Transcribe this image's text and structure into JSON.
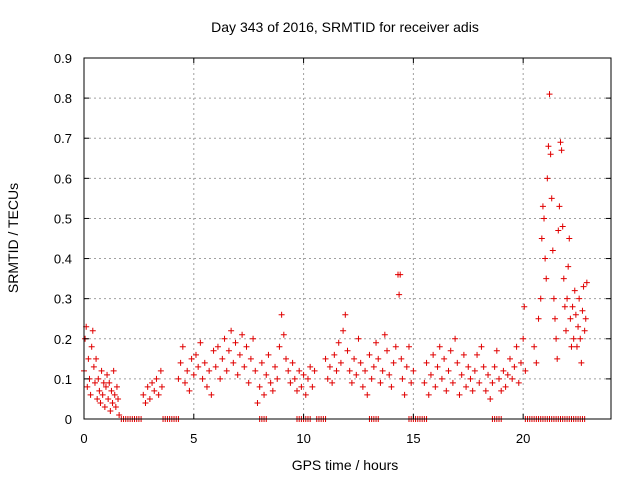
{
  "chart_data": {
    "type": "scatter",
    "title": "Day 343 of 2016, SRMTID for receiver adis",
    "xlabel": "GPS time / hours",
    "ylabel": "SRMTID / TECUs",
    "xlim": [
      0,
      24
    ],
    "ylim": [
      0,
      0.9
    ],
    "xticks": [
      0,
      5,
      10,
      15,
      20
    ],
    "xtick_labels": [
      "0",
      "5",
      "10",
      "15",
      "20"
    ],
    "yticks": [
      0,
      0.1,
      0.2,
      0.3,
      0.4,
      0.5,
      0.6,
      0.7,
      0.8,
      0.9
    ],
    "ytick_labels": [
      "0",
      "0.1",
      "0.2",
      "0.3",
      "0.4",
      "0.5",
      "0.6",
      "0.7",
      "0.8",
      "0.9"
    ],
    "grid": true,
    "marker": "+",
    "marker_color": "#e00000",
    "series": [
      {
        "name": "SRMTID",
        "points": [
          [
            0.0,
            0.12
          ],
          [
            0.05,
            0.2
          ],
          [
            0.1,
            0.23
          ],
          [
            0.15,
            0.08
          ],
          [
            0.2,
            0.15
          ],
          [
            0.25,
            0.1
          ],
          [
            0.3,
            0.06
          ],
          [
            0.35,
            0.18
          ],
          [
            0.4,
            0.22
          ],
          [
            0.45,
            0.13
          ],
          [
            0.5,
            0.09
          ],
          [
            0.55,
            0.15
          ],
          [
            0.6,
            0.05
          ],
          [
            0.65,
            0.1
          ],
          [
            0.7,
            0.07
          ],
          [
            0.75,
            0.04
          ],
          [
            0.8,
            0.12
          ],
          [
            0.85,
            0.06
          ],
          [
            0.9,
            0.09
          ],
          [
            0.95,
            0.03
          ],
          [
            1.0,
            0.08
          ],
          [
            1.05,
            0.11
          ],
          [
            1.1,
            0.05
          ],
          [
            1.15,
            0.09
          ],
          [
            1.2,
            0.02
          ],
          [
            1.25,
            0.07
          ],
          [
            1.3,
            0.04
          ],
          [
            1.35,
            0.12
          ],
          [
            1.4,
            0.06
          ],
          [
            1.45,
            0.03
          ],
          [
            1.5,
            0.08
          ],
          [
            1.55,
            0.05
          ],
          [
            1.6,
            0.01
          ],
          [
            2.7,
            0.06
          ],
          [
            2.8,
            0.04
          ],
          [
            2.9,
            0.08
          ],
          [
            3.0,
            0.05
          ],
          [
            3.1,
            0.09
          ],
          [
            3.2,
            0.07
          ],
          [
            3.3,
            0.1
          ],
          [
            3.4,
            0.06
          ],
          [
            3.5,
            0.12
          ],
          [
            3.55,
            0.08
          ],
          [
            4.3,
            0.1
          ],
          [
            4.4,
            0.14
          ],
          [
            4.5,
            0.18
          ],
          [
            4.6,
            0.09
          ],
          [
            4.7,
            0.12
          ],
          [
            4.8,
            0.07
          ],
          [
            4.9,
            0.15
          ],
          [
            5.0,
            0.11
          ],
          [
            5.1,
            0.16
          ],
          [
            5.2,
            0.13
          ],
          [
            5.3,
            0.19
          ],
          [
            5.4,
            0.1
          ],
          [
            5.5,
            0.14
          ],
          [
            5.6,
            0.08
          ],
          [
            5.7,
            0.12
          ],
          [
            5.8,
            0.06
          ],
          [
            5.9,
            0.17
          ],
          [
            6.0,
            0.13
          ],
          [
            6.1,
            0.18
          ],
          [
            6.2,
            0.1
          ],
          [
            6.3,
            0.15
          ],
          [
            6.4,
            0.2
          ],
          [
            6.5,
            0.12
          ],
          [
            6.6,
            0.17
          ],
          [
            6.7,
            0.22
          ],
          [
            6.8,
            0.14
          ],
          [
            6.9,
            0.19
          ],
          [
            7.0,
            0.11
          ],
          [
            7.1,
            0.16
          ],
          [
            7.2,
            0.21
          ],
          [
            7.3,
            0.13
          ],
          [
            7.4,
            0.18
          ],
          [
            7.5,
            0.09
          ],
          [
            7.6,
            0.15
          ],
          [
            7.7,
            0.2
          ],
          [
            7.8,
            0.12
          ],
          [
            7.9,
            0.04
          ],
          [
            8.0,
            0.08
          ],
          [
            8.1,
            0.14
          ],
          [
            8.2,
            0.06
          ],
          [
            8.3,
            0.11
          ],
          [
            8.4,
            0.16
          ],
          [
            8.5,
            0.09
          ],
          [
            8.6,
            0.07
          ],
          [
            8.7,
            0.13
          ],
          [
            8.8,
            0.1
          ],
          [
            8.9,
            0.18
          ],
          [
            9.0,
            0.26
          ],
          [
            9.1,
            0.21
          ],
          [
            9.2,
            0.15
          ],
          [
            9.3,
            0.12
          ],
          [
            9.4,
            0.09
          ],
          [
            9.5,
            0.14
          ],
          [
            9.6,
            0.1
          ],
          [
            9.7,
            0.07
          ],
          [
            9.8,
            0.12
          ],
          [
            9.9,
            0.08
          ],
          [
            10.0,
            0.11
          ],
          [
            10.1,
            0.06
          ],
          [
            10.2,
            0.1
          ],
          [
            10.3,
            0.13
          ],
          [
            10.4,
            0.08
          ],
          [
            10.5,
            0.12
          ],
          [
            11.0,
            0.15
          ],
          [
            11.1,
            0.1
          ],
          [
            11.2,
            0.13
          ],
          [
            11.3,
            0.09
          ],
          [
            11.4,
            0.16
          ],
          [
            11.5,
            0.12
          ],
          [
            11.6,
            0.19
          ],
          [
            11.7,
            0.14
          ],
          [
            11.8,
            0.22
          ],
          [
            11.9,
            0.26
          ],
          [
            12.0,
            0.17
          ],
          [
            12.1,
            0.12
          ],
          [
            12.2,
            0.09
          ],
          [
            12.3,
            0.15
          ],
          [
            12.4,
            0.11
          ],
          [
            12.5,
            0.2
          ],
          [
            12.6,
            0.14
          ],
          [
            12.7,
            0.08
          ],
          [
            12.8,
            0.12
          ],
          [
            12.9,
            0.06
          ],
          [
            13.0,
            0.16
          ],
          [
            13.1,
            0.1
          ],
          [
            13.2,
            0.13
          ],
          [
            13.3,
            0.19
          ],
          [
            13.4,
            0.15
          ],
          [
            13.5,
            0.09
          ],
          [
            13.6,
            0.12
          ],
          [
            13.7,
            0.21
          ],
          [
            13.8,
            0.17
          ],
          [
            13.9,
            0.11
          ],
          [
            14.0,
            0.08
          ],
          [
            14.1,
            0.14
          ],
          [
            14.2,
            0.18
          ],
          [
            14.3,
            0.36
          ],
          [
            14.35,
            0.31
          ],
          [
            14.4,
            0.36
          ],
          [
            14.45,
            0.15
          ],
          [
            14.5,
            0.1
          ],
          [
            14.6,
            0.06
          ],
          [
            14.7,
            0.13
          ],
          [
            14.8,
            0.18
          ],
          [
            14.9,
            0.09
          ],
          [
            15.0,
            0.12
          ],
          [
            15.5,
            0.09
          ],
          [
            15.6,
            0.14
          ],
          [
            15.7,
            0.06
          ],
          [
            15.8,
            0.11
          ],
          [
            15.9,
            0.16
          ],
          [
            16.0,
            0.08
          ],
          [
            16.1,
            0.13
          ],
          [
            16.2,
            0.18
          ],
          [
            16.3,
            0.1
          ],
          [
            16.4,
            0.15
          ],
          [
            16.5,
            0.07
          ],
          [
            16.6,
            0.12
          ],
          [
            16.7,
            0.17
          ],
          [
            16.8,
            0.09
          ],
          [
            16.9,
            0.2
          ],
          [
            17.0,
            0.14
          ],
          [
            17.1,
            0.06
          ],
          [
            17.2,
            0.11
          ],
          [
            17.3,
            0.16
          ],
          [
            17.4,
            0.08
          ],
          [
            17.5,
            0.13
          ],
          [
            17.6,
            0.1
          ],
          [
            17.7,
            0.07
          ],
          [
            17.8,
            0.12
          ],
          [
            17.9,
            0.16
          ],
          [
            18.0,
            0.09
          ],
          [
            18.1,
            0.18
          ],
          [
            18.2,
            0.13
          ],
          [
            18.3,
            0.07
          ],
          [
            18.4,
            0.11
          ],
          [
            18.5,
            0.05
          ],
          [
            18.6,
            0.09
          ],
          [
            18.7,
            0.13
          ],
          [
            18.8,
            0.17
          ],
          [
            18.9,
            0.1
          ],
          [
            19.0,
            0.07
          ],
          [
            19.1,
            0.12
          ],
          [
            19.2,
            0.08
          ],
          [
            19.3,
            0.11
          ],
          [
            19.4,
            0.15
          ],
          [
            19.5,
            0.1
          ],
          [
            19.6,
            0.13
          ],
          [
            19.7,
            0.18
          ],
          [
            19.8,
            0.09
          ],
          [
            19.9,
            0.14
          ],
          [
            20.0,
            0.2
          ],
          [
            20.05,
            0.28
          ],
          [
            20.1,
            0.12
          ],
          [
            20.5,
            0.18
          ],
          [
            20.6,
            0.14
          ],
          [
            20.7,
            0.25
          ],
          [
            20.8,
            0.3
          ],
          [
            20.85,
            0.45
          ],
          [
            20.9,
            0.53
          ],
          [
            20.95,
            0.5
          ],
          [
            21.0,
            0.4
          ],
          [
            21.05,
            0.35
          ],
          [
            21.1,
            0.6
          ],
          [
            21.15,
            0.68
          ],
          [
            21.2,
            0.81
          ],
          [
            21.25,
            0.66
          ],
          [
            21.3,
            0.55
          ],
          [
            21.35,
            0.42
          ],
          [
            21.4,
            0.3
          ],
          [
            21.45,
            0.25
          ],
          [
            21.5,
            0.2
          ],
          [
            21.55,
            0.15
          ],
          [
            21.6,
            0.47
          ],
          [
            21.65,
            0.53
          ],
          [
            21.7,
            0.69
          ],
          [
            21.75,
            0.67
          ],
          [
            21.8,
            0.48
          ],
          [
            21.85,
            0.35
          ],
          [
            21.9,
            0.28
          ],
          [
            21.95,
            0.22
          ],
          [
            22.0,
            0.3
          ],
          [
            22.05,
            0.38
          ],
          [
            22.1,
            0.45
          ],
          [
            22.15,
            0.25
          ],
          [
            22.2,
            0.18
          ],
          [
            22.25,
            0.28
          ],
          [
            22.3,
            0.2
          ],
          [
            22.35,
            0.32
          ],
          [
            22.4,
            0.26
          ],
          [
            22.45,
            0.18
          ],
          [
            22.5,
            0.23
          ],
          [
            22.55,
            0.3
          ],
          [
            22.6,
            0.2
          ],
          [
            22.65,
            0.14
          ],
          [
            22.7,
            0.27
          ],
          [
            22.75,
            0.33
          ],
          [
            22.8,
            0.22
          ],
          [
            22.85,
            0.25
          ],
          [
            22.9,
            0.34
          ]
        ],
        "zero_intervals": [
          [
            1.7,
            2.6
          ],
          [
            3.6,
            4.3
          ],
          [
            8.0,
            8.3
          ],
          [
            9.7,
            10.3
          ],
          [
            10.6,
            11.0
          ],
          [
            13.0,
            13.4
          ],
          [
            14.8,
            15.6
          ],
          [
            18.6,
            19.0
          ],
          [
            20.1,
            22.8
          ]
        ]
      }
    ]
  }
}
